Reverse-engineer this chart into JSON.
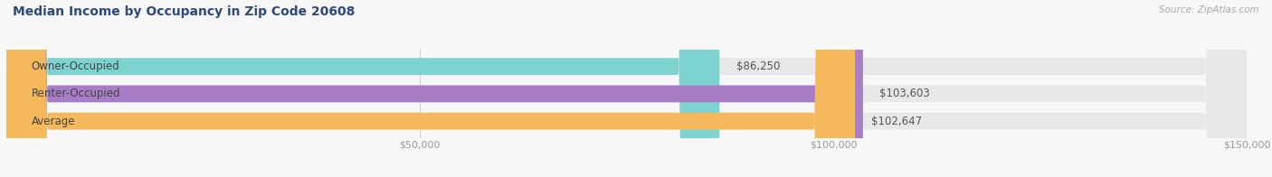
{
  "title": "Median Income by Occupancy in Zip Code 20608",
  "source": "Source: ZipAtlas.com",
  "categories": [
    "Owner-Occupied",
    "Renter-Occupied",
    "Average"
  ],
  "values": [
    86250,
    103603,
    102647
  ],
  "bar_colors": [
    "#7dd3cf",
    "#a87dc8",
    "#f5b85a"
  ],
  "bar_labels": [
    "$86,250",
    "$103,603",
    "$102,647"
  ],
  "xlim": [
    0,
    150000
  ],
  "xticks": [
    50000,
    100000,
    150000
  ],
  "xtick_labels": [
    "$50,000",
    "$100,000",
    "$150,000"
  ],
  "bg_color": "#f7f7f7",
  "bar_bg_color": "#e8e8e8",
  "title_color": "#2e4a7a",
  "source_color": "#aaaaaa",
  "label_color": "#555555",
  "category_color": "#444444",
  "bar_height": 0.62,
  "rounding_size": 5000
}
